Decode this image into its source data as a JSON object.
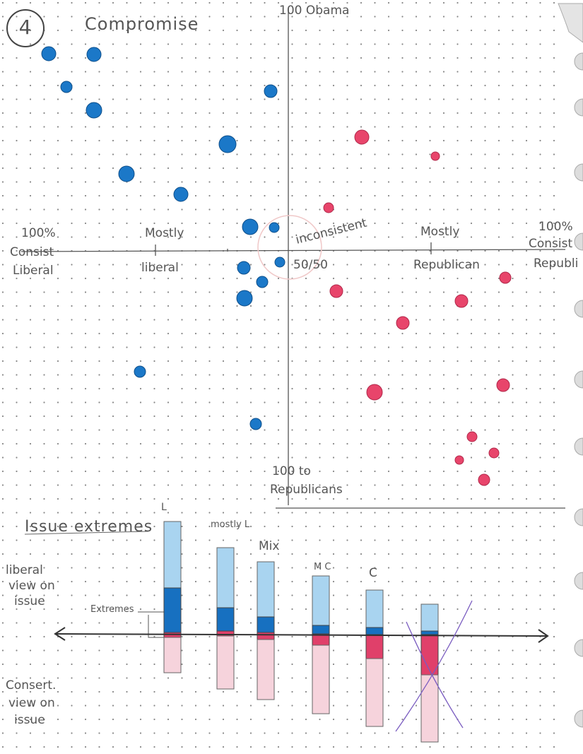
{
  "header": {
    "page_number": "4",
    "title": "Compromise"
  },
  "scatter": {
    "top_label": "100 Obama",
    "bottom_label": [
      "100 to",
      "Republicans"
    ],
    "left_label": [
      "100%",
      "Consist",
      "Liberal"
    ],
    "mostly_liberal": [
      "Mostly",
      "liberal"
    ],
    "center_label": [
      "inconsistent",
      "50/50"
    ],
    "mostly_republican": [
      "Mostly",
      "Republican"
    ],
    "right_label": [
      "100%",
      "Consist",
      "Republi"
    ]
  },
  "issue_chart": {
    "title": "Issue extremes",
    "top_side_label": [
      "liberal",
      "view on",
      "issue"
    ],
    "bottom_side_label": [
      "Consert.",
      "view on",
      "issue"
    ],
    "extremes_label": "Extremes",
    "bar_labels": [
      "L",
      "mostly L",
      "Mix",
      "M C",
      "C"
    ]
  }
}
